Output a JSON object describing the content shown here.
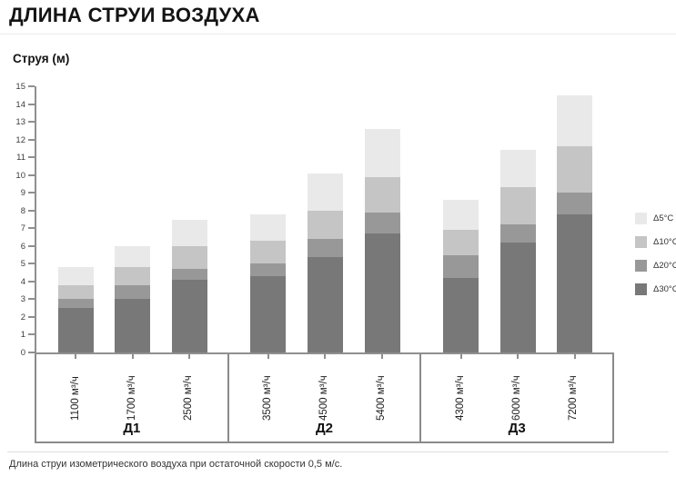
{
  "title": "ДЛИНА СТРУИ ВОЗДУХА",
  "ylabel": "Струя (м)",
  "caption": "Длина струи изометрического воздуха при остаточной скорости 0,5 м/с.",
  "legend": [
    {
      "key": "d5",
      "label": "Δ5°C",
      "color": "#e9e9e9"
    },
    {
      "key": "d10",
      "label": "Δ10°C",
      "color": "#c5c5c5"
    },
    {
      "key": "d20",
      "label": "Δ20°C",
      "color": "#989898"
    },
    {
      "key": "d30",
      "label": "Δ30°C",
      "color": "#787878"
    }
  ],
  "chart_data": {
    "type": "bar",
    "stacked": true,
    "note": "values are cumulative jet length (m) reached at each temperature difference; segments drawn dark (Δ30°C) at bottom to light (Δ5°C) at top",
    "ylim": [
      0,
      15
    ],
    "ytick_step": 1,
    "yticks": [
      0,
      1,
      2,
      3,
      4,
      5,
      6,
      7,
      8,
      9,
      10,
      11,
      12,
      13,
      14,
      15
    ],
    "groups": [
      {
        "name": "Д1",
        "bars": [
          {
            "label": "1100 м³/ч",
            "d30": 2.5,
            "d20": 3.0,
            "d10": 3.8,
            "d5": 4.8
          },
          {
            "label": "1700 м³/ч",
            "d30": 3.0,
            "d20": 3.8,
            "d10": 4.8,
            "d5": 6.0
          },
          {
            "label": "2500 м³/ч",
            "d30": 4.1,
            "d20": 4.7,
            "d10": 6.0,
            "d5": 7.5
          }
        ]
      },
      {
        "name": "Д2",
        "bars": [
          {
            "label": "3500 м³/ч",
            "d30": 4.3,
            "d20": 5.0,
            "d10": 6.3,
            "d5": 7.8
          },
          {
            "label": "4500 м³/ч",
            "d30": 5.4,
            "d20": 6.4,
            "d10": 8.0,
            "d5": 10.1
          },
          {
            "label": "5400 м³/ч",
            "d30": 6.7,
            "d20": 7.9,
            "d10": 9.9,
            "d5": 12.6
          }
        ]
      },
      {
        "name": "Д3",
        "bars": [
          {
            "label": "4300 м³/ч",
            "d30": 4.2,
            "d20": 5.5,
            "d10": 6.9,
            "d5": 8.6
          },
          {
            "label": "6000 м³/ч",
            "d30": 6.2,
            "d20": 7.2,
            "d10": 9.3,
            "d5": 11.4
          },
          {
            "label": "7200 м³/ч",
            "d30": 7.8,
            "d20": 9.0,
            "d10": 11.6,
            "d5": 14.5
          }
        ]
      }
    ]
  }
}
